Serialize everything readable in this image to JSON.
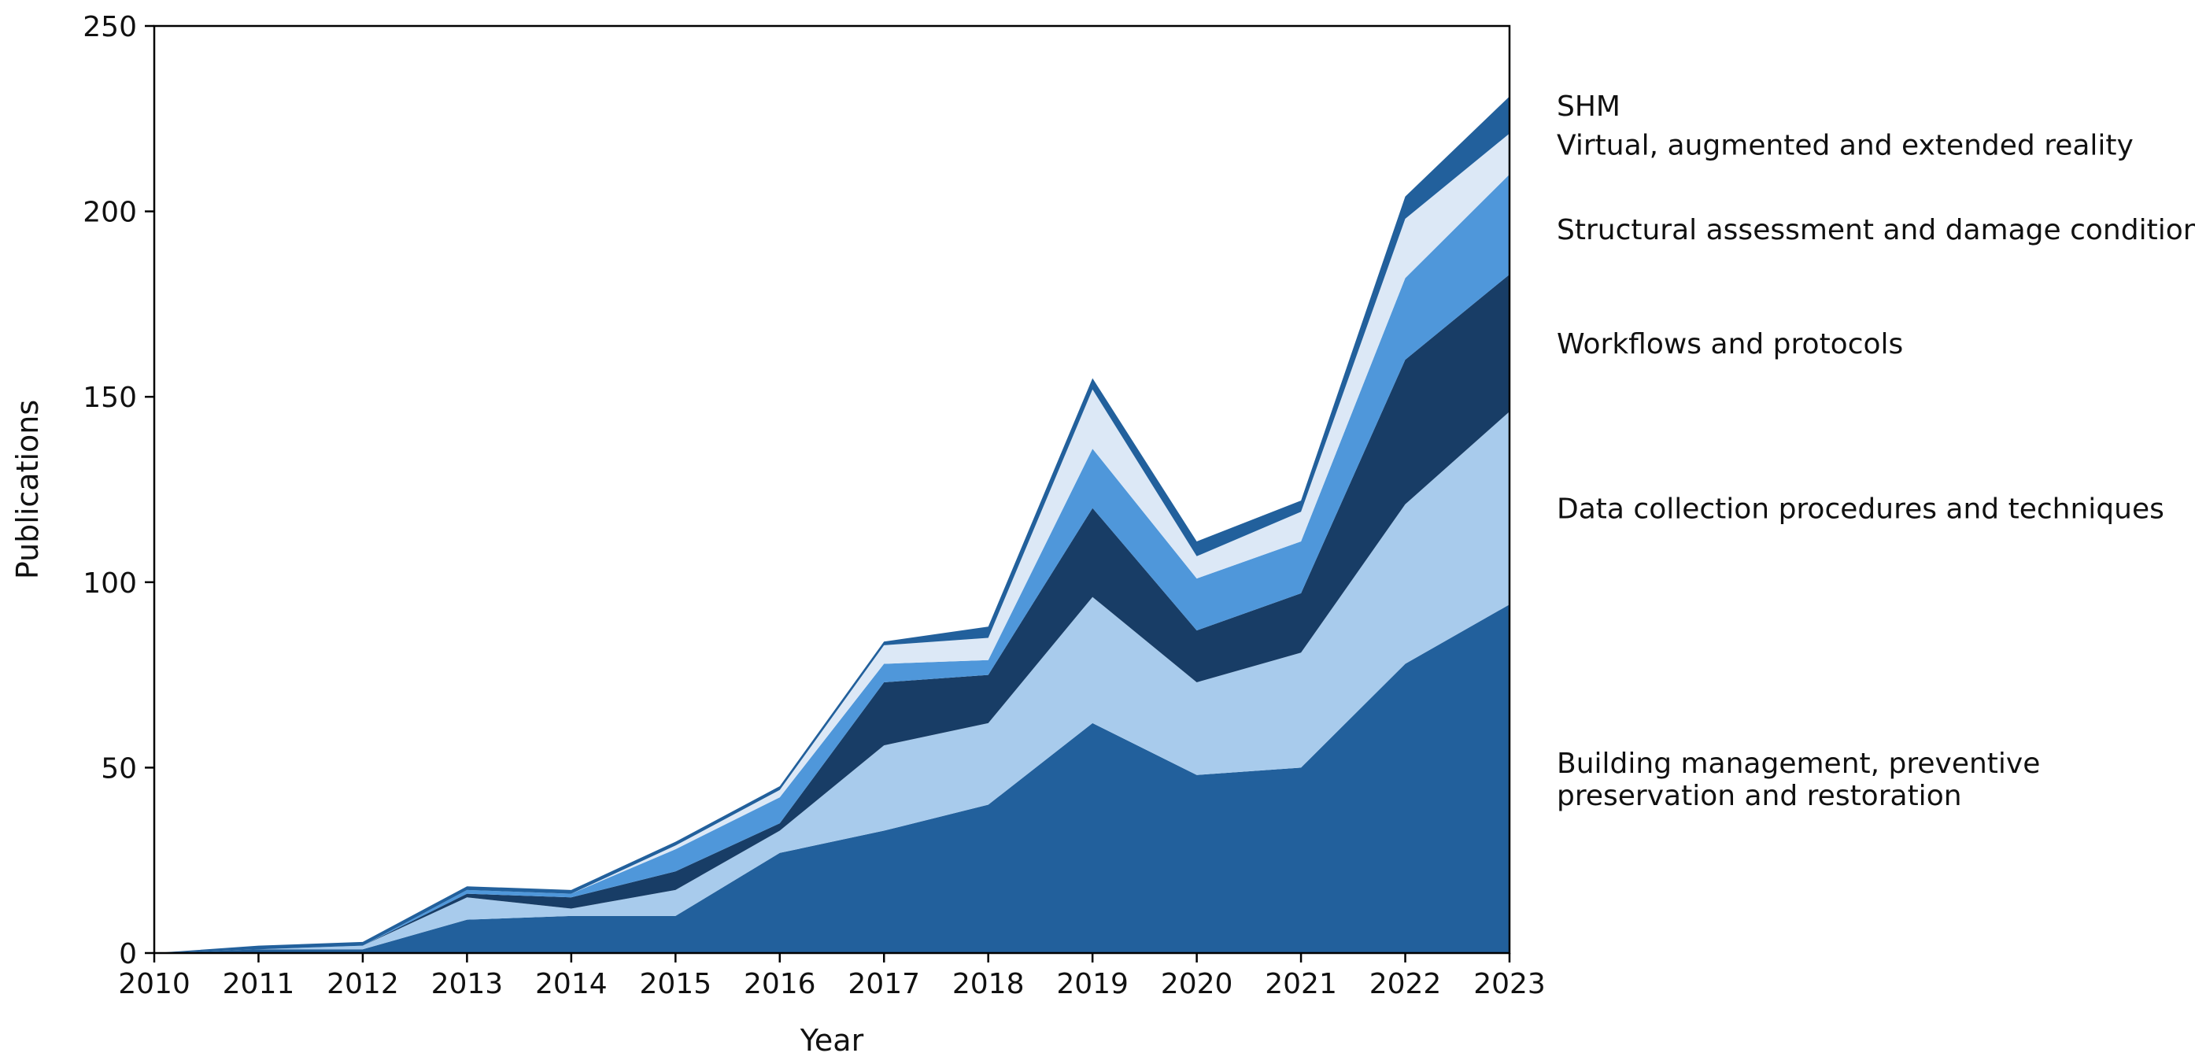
{
  "chart_data": {
    "type": "area",
    "stacked": true,
    "xlabel": "Year",
    "ylabel": "Publications",
    "xlim": [
      2010,
      2023
    ],
    "ylim": [
      0,
      250
    ],
    "xticks": [
      2010,
      2011,
      2012,
      2013,
      2014,
      2015,
      2016,
      2017,
      2018,
      2019,
      2020,
      2021,
      2022,
      2023
    ],
    "yticks": [
      0,
      50,
      100,
      150,
      200,
      250
    ],
    "x": [
      2010,
      2011,
      2012,
      2013,
      2014,
      2015,
      2016,
      2017,
      2018,
      2019,
      2020,
      2021,
      2022,
      2023
    ],
    "grid": false,
    "legend": "direct labels at right",
    "series": [
      {
        "name": "Building management, preventive preservation and restoration",
        "label_lines": [
          "Building management, preventive",
          "preservation and restoration"
        ],
        "color": "#22609c",
        "values": [
          0,
          1,
          1,
          9,
          10,
          10,
          27,
          33,
          40,
          62,
          48,
          50,
          78,
          94
        ]
      },
      {
        "name": "Data collection procedures and techniques",
        "label_lines": [
          "Data collection procedures and techniques"
        ],
        "color": "#a8cbec",
        "values": [
          0,
          0,
          1,
          6,
          2,
          7,
          6,
          23,
          22,
          34,
          25,
          31,
          43,
          52
        ]
      },
      {
        "name": "Workflows and protocols",
        "label_lines": [
          "Workflows and protocols"
        ],
        "color": "#183d66",
        "values": [
          0,
          0,
          0,
          1,
          3,
          5,
          2,
          17,
          13,
          24,
          14,
          16,
          39,
          37
        ]
      },
      {
        "name": "Structural assessment and damage condition",
        "label_lines": [
          "Structural assessment and damage condition"
        ],
        "color": "#4f97da",
        "values": [
          0,
          0,
          0,
          1,
          1,
          6,
          7,
          5,
          4,
          16,
          14,
          14,
          22,
          27
        ]
      },
      {
        "name": "Virtual, augmented and extended reality",
        "label_lines": [
          "Virtual, augmented and extended reality"
        ],
        "color": "#dce8f6",
        "values": [
          0,
          0,
          0,
          0,
          0,
          1,
          2,
          5,
          6,
          16,
          6,
          8,
          16,
          11
        ]
      },
      {
        "name": "SHM",
        "label_lines": [
          "SHM"
        ],
        "color": "#22609c",
        "values": [
          0,
          1,
          1,
          1,
          1,
          1,
          1,
          1,
          3,
          3,
          4,
          3,
          6,
          10
        ]
      }
    ]
  }
}
